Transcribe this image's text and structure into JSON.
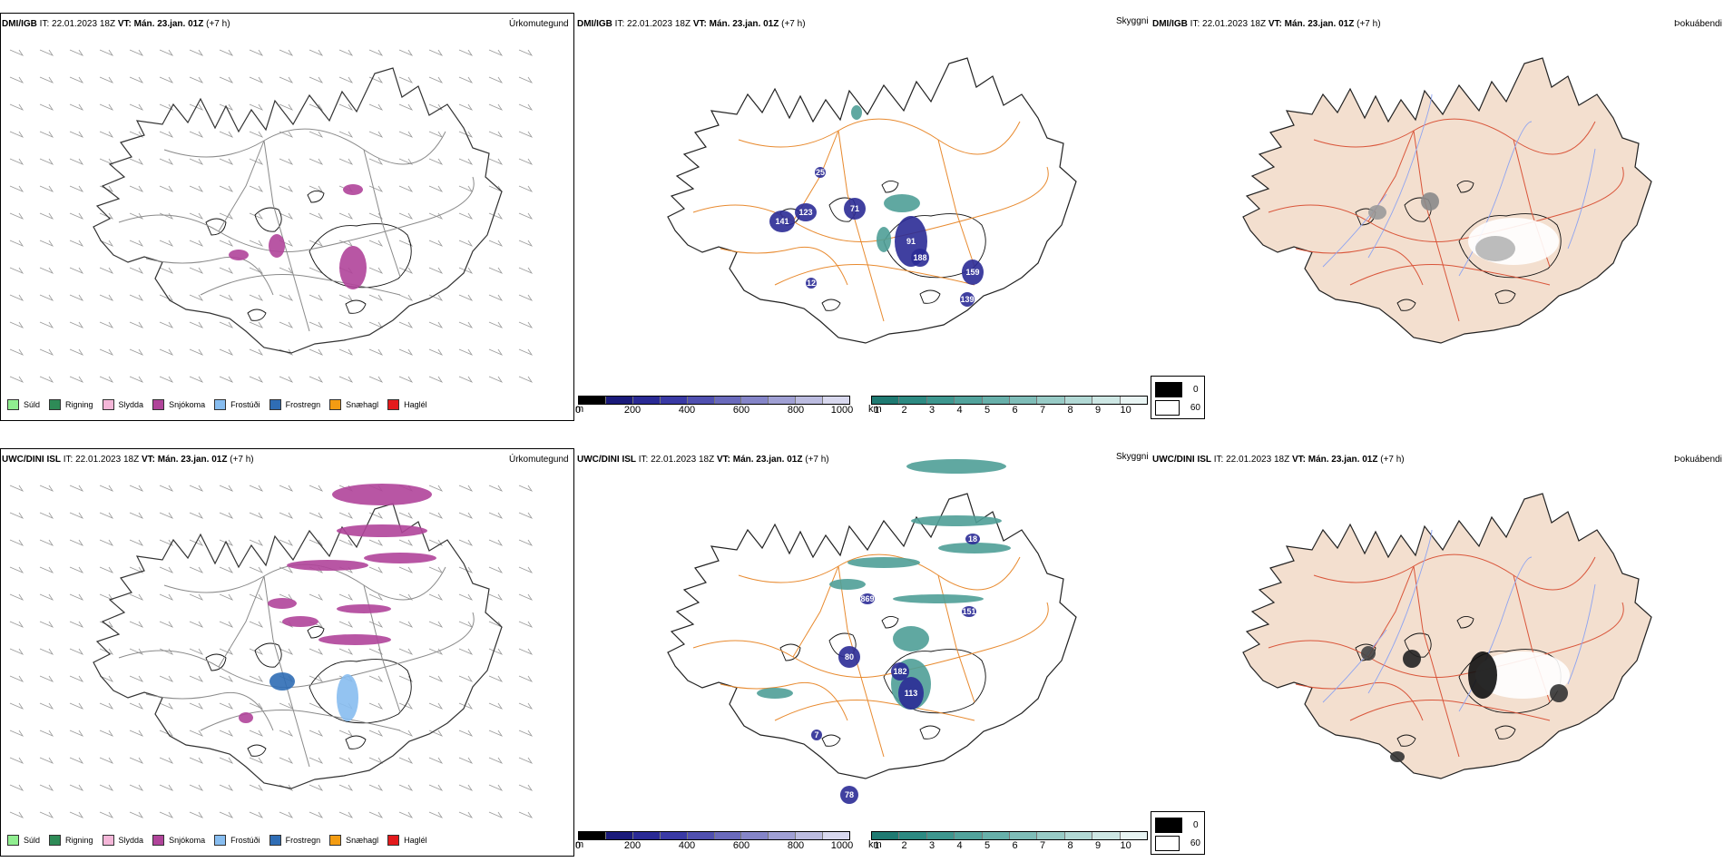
{
  "top_row": {
    "precip": {
      "header_model": "DMI/IGB",
      "header_it": "IT: 22.01.2023 18Z",
      "header_vt": "VT: Mán. 23.jan. 01Z",
      "header_offset": "(+7 h)",
      "title": "Úrkomutegund"
    },
    "visibility": {
      "header_model": "DMI/IGB",
      "header_it": "IT: 22.01.2023 18Z",
      "header_vt": "VT: Mán. 23.jan. 01Z",
      "header_offset": "(+7 h)",
      "title": "Skyggni",
      "labels": [
        "141",
        "123",
        "71",
        "91",
        "188",
        "159",
        "139",
        "12",
        "25"
      ]
    },
    "fog": {
      "header_model": "DMI/IGB",
      "header_it": "IT: 22.01.2023 18Z",
      "header_vt": "VT: Mán. 23.jan. 01Z",
      "header_offset": "(+7 h)",
      "title": "Þokuábendi"
    }
  },
  "bottom_row": {
    "precip": {
      "header_model": "UWC/DINI ISL",
      "header_it": "IT: 22.01.2023 18Z",
      "header_vt": "VT: Mán. 23.jan. 01Z",
      "header_offset": "(+7 h)",
      "title": "Úrkomutegund"
    },
    "visibility": {
      "header_model": "UWC/DINI ISL",
      "header_it": "IT: 22.01.2023 18Z",
      "header_vt": "VT: Mán. 23.jan. 01Z",
      "header_offset": "(+7 h)",
      "title": "Skyggni",
      "labels": [
        "80",
        "182",
        "113",
        "18",
        "869",
        "151",
        "78",
        "7"
      ]
    },
    "fog": {
      "header_model": "UWC/DINI ISL",
      "header_it": "IT: 22.01.2023 18Z",
      "header_vt": "VT: Mán. 23.jan. 01Z",
      "header_offset": "(+7 h)",
      "title": "Þokuábendi"
    }
  },
  "precip_legend": [
    {
      "label": "Súld",
      "color": "#90ee90"
    },
    {
      "label": "Rigning",
      "color": "#2e8b57"
    },
    {
      "label": "Slydda",
      "color": "#f4b6d8"
    },
    {
      "label": "Snjókoma",
      "color": "#b0449a"
    },
    {
      "label": "Frostúði",
      "color": "#87bdf0"
    },
    {
      "label": "Frostregn",
      "color": "#2f6db5"
    },
    {
      "label": "Snæhagl",
      "color": "#f39c12"
    },
    {
      "label": "Haglél",
      "color": "#e31a1c"
    }
  ],
  "ceiling_bar": {
    "unit": "m",
    "ticks": [
      "0",
      "200",
      "400",
      "600",
      "800",
      "1000"
    ],
    "colors": [
      "#000000",
      "#1a1a7a",
      "#2a2a95",
      "#3a3aa5",
      "#5050b0",
      "#6a6abc",
      "#8585c8",
      "#a0a0d4",
      "#bcbce0",
      "#d8d8ee"
    ]
  },
  "vis_bar": {
    "unit": "km",
    "ticks": [
      "1",
      "2",
      "3",
      "4",
      "5",
      "6",
      "7",
      "8",
      "9",
      "10"
    ],
    "colors": [
      "#1f7a72",
      "#2d8a82",
      "#3e978f",
      "#52a39c",
      "#68b0aa",
      "#7fbdb8",
      "#98cbc6",
      "#b2d9d5",
      "#cde7e4",
      "#e8f4f3"
    ]
  },
  "fog_legend": [
    {
      "label": "0",
      "color": "#000000"
    },
    {
      "label": "60",
      "color": "#ffffff"
    }
  ]
}
